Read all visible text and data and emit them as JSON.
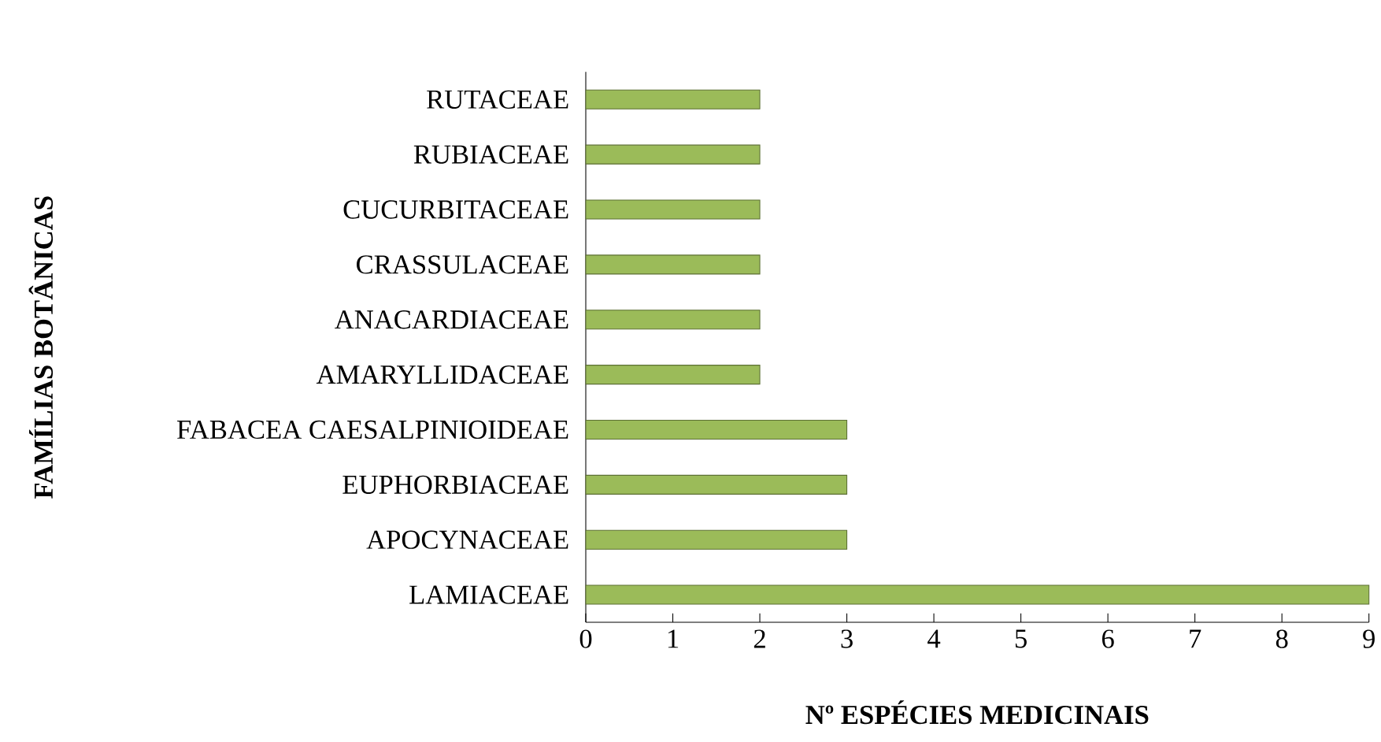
{
  "chart_data": {
    "type": "bar",
    "orientation": "horizontal",
    "xlabel": "Nº ESPÉCIES MEDICINAIS",
    "ylabel": "FAMÍLIAS BOTÂNICAS",
    "categories": [
      "RUTACEAE",
      "RUBIACEAE",
      "CUCURBITACEAE",
      "CRASSULACEAE",
      "ANACARDIACEAE",
      "AMARYLLIDACEAE",
      "FABACEA CAESALPINIOIDEAE",
      "EUPHORBIACEAE",
      "APOCYNACEAE",
      "LAMIACEAE"
    ],
    "values": [
      2,
      2,
      2,
      2,
      2,
      2,
      3,
      3,
      3,
      9
    ],
    "color": "#9bbb59",
    "xlim": [
      0,
      9
    ],
    "xticks": [
      0,
      1,
      2,
      3,
      4,
      5,
      6,
      7,
      8,
      9
    ],
    "grid": false
  }
}
